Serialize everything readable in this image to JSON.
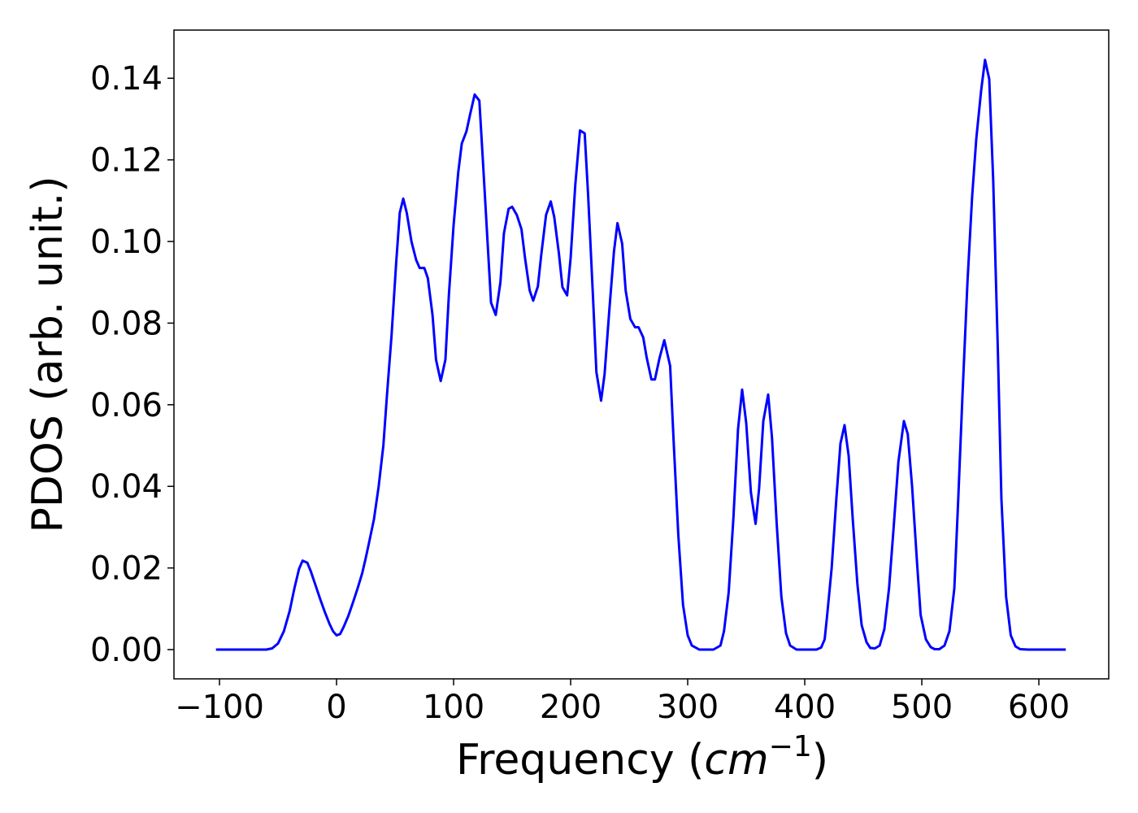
{
  "chart_data": {
    "type": "line",
    "xlabel": [
      "Frequency (",
      "cm",
      "−1",
      ")"
    ],
    "ylabel": "PDOS (arb. unit.)",
    "xlim": [
      -138.9,
      659.7
    ],
    "ylim": [
      -0.00717,
      0.1518
    ],
    "xticks": [
      {
        "value": -100,
        "label": "−100"
      },
      0,
      100,
      200,
      300,
      400,
      500,
      600
    ],
    "yticks": [
      {
        "value": 0,
        "label": "0.00"
      },
      0.02,
      0.04,
      0.06,
      0.08,
      {
        "value": 0.1,
        "label": "0.10"
      },
      0.12,
      0.14
    ],
    "grid": false,
    "x": [
      -103,
      -60,
      -55,
      -50,
      -45,
      -40,
      -36,
      -32,
      -29,
      -25,
      -22,
      -18,
      -14,
      -10,
      -6,
      -3,
      0,
      3,
      6,
      10,
      14,
      18,
      22,
      25,
      28,
      32,
      36,
      40,
      43,
      47,
      51,
      54,
      57,
      60,
      64,
      68,
      71,
      75,
      78,
      82,
      85,
      89,
      93,
      96,
      100,
      104,
      107,
      111,
      114,
      118,
      122,
      125,
      129,
      132,
      136,
      140,
      143,
      147,
      150,
      154,
      158,
      161,
      165,
      168,
      172,
      175,
      179,
      183,
      186,
      190,
      193,
      197,
      200,
      204,
      208,
      212,
      215,
      219,
      222,
      226,
      229,
      233,
      237,
      240,
      244,
      247,
      251,
      255,
      258,
      262,
      265,
      269,
      272,
      276,
      280,
      285,
      288,
      292,
      296,
      300,
      303.5,
      310,
      322,
      328,
      331,
      335,
      339,
      343,
      346.5,
      350,
      354,
      358,
      361,
      364.6,
      368.75,
      372,
      376,
      380,
      384,
      387.5,
      393,
      410,
      414,
      417,
      419,
      423,
      427,
      430.5,
      434,
      437.5,
      441,
      445,
      448.6,
      452.8,
      456,
      460,
      464,
      468,
      472,
      475.7,
      480,
      484.7,
      488,
      491.7,
      496,
      499,
      503.5,
      507.6,
      511,
      515,
      519.4,
      523.6,
      527.8,
      531,
      534.7,
      539,
      543,
      546.5,
      550.7,
      554,
      557.6,
      561,
      565,
      568,
      572,
      576,
      580,
      584,
      591,
      623
    ],
    "series": [
      {
        "name": "PDOS",
        "color": "#0000ff",
        "values": [
          0,
          0,
          0.0003,
          0.0015,
          0.0045,
          0.0095,
          0.015,
          0.0198,
          0.0218,
          0.0213,
          0.0192,
          0.0158,
          0.0124,
          0.0092,
          0.0063,
          0.0045,
          0.0035,
          0.0038,
          0.0055,
          0.0082,
          0.0115,
          0.015,
          0.0188,
          0.0225,
          0.0265,
          0.032,
          0.04,
          0.05,
          0.062,
          0.077,
          0.095,
          0.107,
          0.1105,
          0.107,
          0.1,
          0.0955,
          0.0935,
          0.0935,
          0.091,
          0.082,
          0.071,
          0.0658,
          0.071,
          0.087,
          0.104,
          0.117,
          0.124,
          0.127,
          0.131,
          0.136,
          0.1345,
          0.12,
          0.1,
          0.085,
          0.082,
          0.09,
          0.102,
          0.108,
          0.1085,
          0.1065,
          0.103,
          0.096,
          0.088,
          0.0855,
          0.089,
          0.097,
          0.1065,
          0.1098,
          0.106,
          0.097,
          0.0888,
          0.0868,
          0.096,
          0.114,
          0.1272,
          0.1265,
          0.111,
          0.087,
          0.068,
          0.061,
          0.0675,
          0.083,
          0.0975,
          0.1045,
          0.0995,
          0.088,
          0.081,
          0.079,
          0.079,
          0.0765,
          0.0715,
          0.0662,
          0.0662,
          0.0715,
          0.0758,
          0.0695,
          0.051,
          0.028,
          0.011,
          0.0035,
          0.001,
          0,
          0,
          0.001,
          0.0045,
          0.014,
          0.032,
          0.054,
          0.0637,
          0.0555,
          0.0385,
          0.0308,
          0.0395,
          0.056,
          0.0625,
          0.052,
          0.031,
          0.013,
          0.004,
          0.001,
          0,
          0,
          0.0005,
          0.0025,
          0.008,
          0.02,
          0.037,
          0.0505,
          0.055,
          0.0475,
          0.032,
          0.016,
          0.006,
          0.0018,
          0.0004,
          0.0003,
          0.001,
          0.005,
          0.015,
          0.029,
          0.046,
          0.056,
          0.0528,
          0.04,
          0.021,
          0.0085,
          0.0025,
          0.0006,
          0.0001,
          0.0001,
          0.001,
          0.0045,
          0.015,
          0.036,
          0.062,
          0.09,
          0.111,
          0.125,
          0.137,
          0.1445,
          0.1398,
          0.115,
          0.073,
          0.037,
          0.013,
          0.0035,
          0.0008,
          0.0001,
          0,
          0
        ]
      }
    ]
  }
}
